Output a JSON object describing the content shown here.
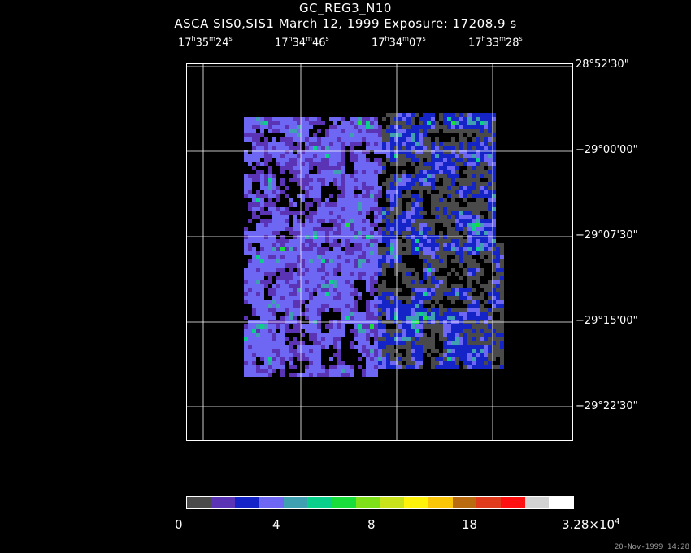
{
  "title": "GC_REG3_N10",
  "subtitle": "ASCA SIS0,SIS1 March 12, 1999 Exposure: 17208.9 s",
  "ra_labels": [
    {
      "h": "17",
      "m": "35",
      "s": "24"
    },
    {
      "h": "17",
      "m": "34",
      "s": "46"
    },
    {
      "h": "17",
      "m": "34",
      "s": "07"
    },
    {
      "h": "17",
      "m": "33",
      "s": "28"
    }
  ],
  "dec_labels": [
    "28°52'30\"",
    "−29°00'00\"",
    "−29°07'30\"",
    "−29°15'00\"",
    "−29°22'30\""
  ],
  "colorbar": {
    "colors": [
      "#4a4a4a",
      "#5b33b5",
      "#1524c6",
      "#6e67f3",
      "#3fa0b2",
      "#0bd08c",
      "#19dd3b",
      "#7ee019",
      "#c8e21c",
      "#fff20a",
      "#fbc508",
      "#ba6b0f",
      "#e03b1c",
      "#ff1111",
      "#d2d2d2",
      "#ffffff"
    ],
    "labels": {
      "l0": "0",
      "l1": "4",
      "l2": "8",
      "l3": "18",
      "l4_base": "3.28×10",
      "l4_exp": "4"
    }
  },
  "timestamp": "20-Nov-1999 14:28"
}
